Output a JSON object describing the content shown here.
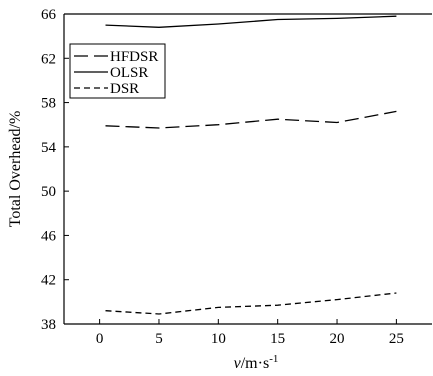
{
  "chart_data": {
    "type": "line",
    "title": "",
    "xlabel_italic": "v",
    "xlabel_rest": "/m·s",
    "xlabel_sup": "-1",
    "ylabel": "Total Overhead/%",
    "xlim": [
      -3,
      28
    ],
    "ylim": [
      38,
      66
    ],
    "x_ticks": [
      0,
      5,
      10,
      15,
      20,
      25
    ],
    "y_ticks": [
      38,
      42,
      46,
      50,
      54,
      58,
      62,
      66
    ],
    "grid": false,
    "legend_position": "top-left",
    "series": [
      {
        "name": "HFDSR",
        "style": "long-dash",
        "color": "#000000",
        "x": [
          0.5,
          5,
          10,
          15,
          20,
          25
        ],
        "y": [
          55.9,
          55.7,
          56.0,
          56.5,
          56.2,
          57.2
        ]
      },
      {
        "name": "OLSR",
        "style": "solid",
        "color": "#000000",
        "x": [
          0.5,
          5,
          10,
          15,
          20,
          25
        ],
        "y": [
          65.0,
          64.8,
          65.1,
          65.5,
          65.6,
          65.8
        ]
      },
      {
        "name": "DSR",
        "style": "short-dash",
        "color": "#000000",
        "x": [
          0.5,
          5,
          10,
          15,
          20,
          25
        ],
        "y": [
          39.2,
          38.9,
          39.5,
          39.7,
          40.2,
          40.8
        ]
      }
    ]
  }
}
